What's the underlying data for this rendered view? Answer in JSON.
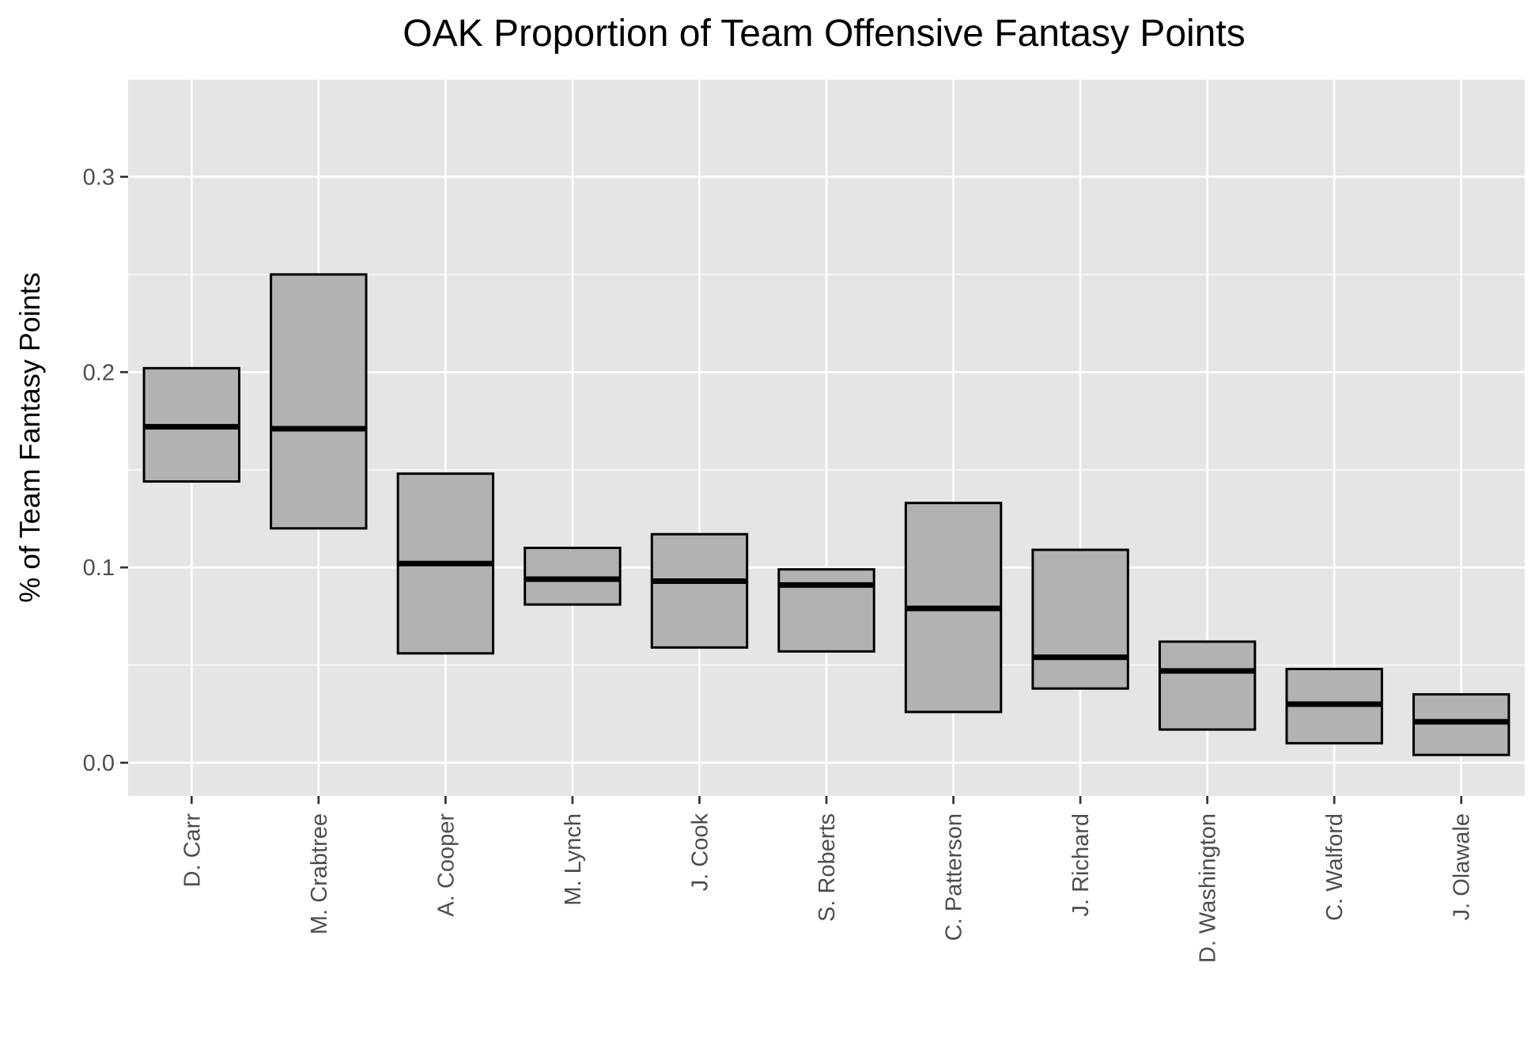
{
  "chart_data": {
    "type": "crossbar",
    "title": "OAK Proportion of Team Offensive Fantasy Points",
    "xlabel": "",
    "ylabel": "% of Team Fantasy Points",
    "ylim": [
      -0.017,
      0.35
    ],
    "yticks": [
      0.0,
      0.1,
      0.2,
      0.3
    ],
    "ytick_labels": [
      "0.0",
      "0.1",
      "0.2",
      "0.3"
    ],
    "grid": true,
    "colors": {
      "panel": "#e5e5e5",
      "grid": "#ffffff",
      "box_fill": "#b2b2b2",
      "box_stroke": "#000000",
      "tick_text": "#4d4d4d"
    },
    "categories": [
      "D. Carr",
      "M. Crabtree",
      "A. Cooper",
      "M. Lynch",
      "J. Cook",
      "S. Roberts",
      "C. Patterson",
      "J. Richard",
      "D. Washington",
      "C. Walford",
      "J. Olawale"
    ],
    "series": [
      {
        "low": [
          0.144,
          0.12,
          0.056,
          0.081,
          0.059,
          0.057,
          0.026,
          0.038,
          0.017,
          0.01,
          0.004
        ],
        "median": [
          0.172,
          0.171,
          0.102,
          0.094,
          0.093,
          0.091,
          0.079,
          0.054,
          0.047,
          0.03,
          0.021
        ],
        "high": [
          0.202,
          0.25,
          0.148,
          0.11,
          0.117,
          0.099,
          0.133,
          0.109,
          0.062,
          0.048,
          0.035
        ]
      }
    ]
  }
}
